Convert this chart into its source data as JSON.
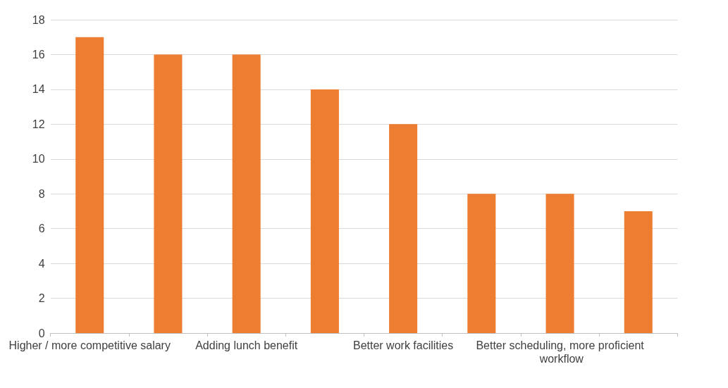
{
  "chart_data": {
    "type": "bar",
    "categories": [
      "Higher / more competitive salary",
      null,
      "Adding lunch benefit",
      null,
      "Better work facilities",
      null,
      "Better scheduling, more proficient workflow",
      null
    ],
    "values": [
      17,
      16,
      16,
      14,
      12,
      8,
      8,
      7
    ],
    "color": "#ed7d31",
    "ylim": [
      0,
      18
    ],
    "yticks": [
      0,
      2,
      4,
      6,
      8,
      10,
      12,
      14,
      16,
      18
    ],
    "grid": "y"
  }
}
